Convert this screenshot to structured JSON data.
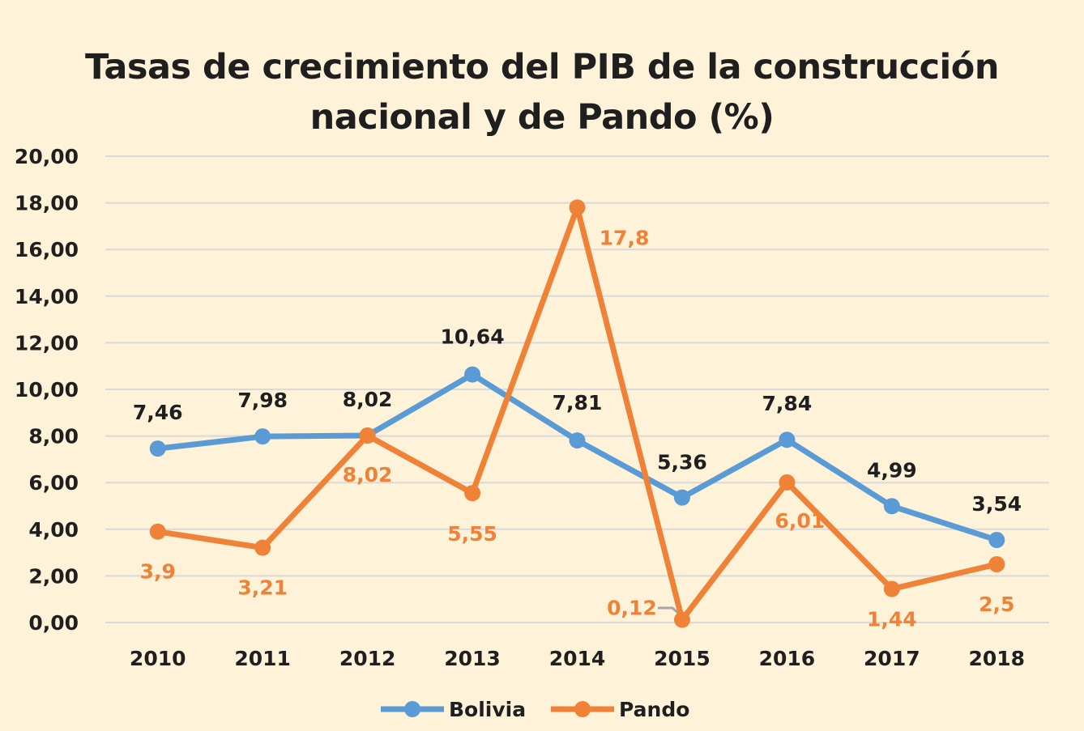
{
  "chart_data": {
    "type": "line",
    "title_line1": "Tasas de crecimiento del PIB de la construcción",
    "title_line2": "nacional y de Pando (%)",
    "categories": [
      "2010",
      "2011",
      "2012",
      "2013",
      "2014",
      "2015",
      "2016",
      "2017",
      "2018"
    ],
    "y_ticks": [
      "0,00",
      "2,00",
      "4,00",
      "6,00",
      "8,00",
      "10,00",
      "12,00",
      "14,00",
      "16,00",
      "18,00",
      "20,00"
    ],
    "ylim": [
      0,
      20
    ],
    "grid": true,
    "legend_placement": "bottom",
    "series": [
      {
        "name": "Bolivia",
        "color": "#5B9BD5",
        "values": [
          7.46,
          7.98,
          8.02,
          10.64,
          7.81,
          5.36,
          7.84,
          4.99,
          3.54
        ],
        "labels": [
          "7,46",
          "7,98",
          "8,02",
          "10,64",
          "7,81",
          "5,36",
          "7,84",
          "4,99",
          "3,54"
        ]
      },
      {
        "name": "Pando",
        "color": "#F08238",
        "values": [
          3.9,
          3.21,
          8.02,
          5.55,
          17.8,
          0.12,
          6.01,
          1.44,
          2.5
        ],
        "labels": [
          "3,9",
          "3,21",
          "8,02",
          "5,55",
          "17,8",
          "0,12",
          "6,01",
          "1,44",
          "2,5"
        ]
      }
    ]
  }
}
